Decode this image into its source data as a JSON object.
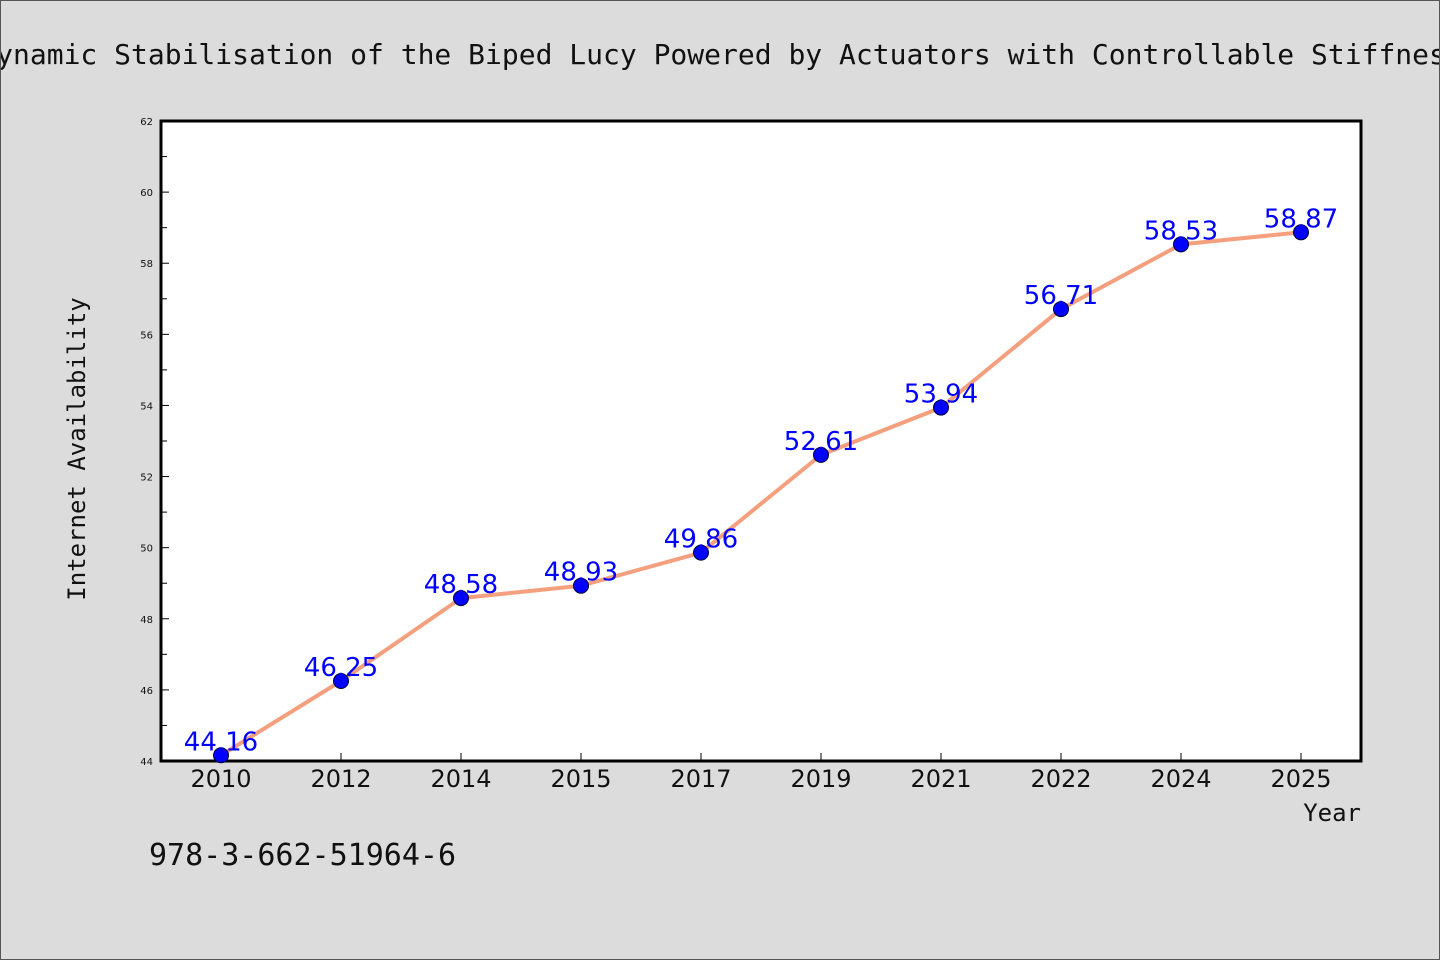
{
  "chart_data": {
    "type": "line",
    "title": "Dynamic Stabilisation of the Biped Lucy Powered by Actuators with Controllable Stiffness",
    "xlabel": "Year",
    "ylabel": "Internet Availability",
    "categories": [
      "2010",
      "2012",
      "2014",
      "2015",
      "2017",
      "2019",
      "2021",
      "2022",
      "2024",
      "2025"
    ],
    "series": [
      {
        "values": [
          44.16,
          46.25,
          48.58,
          48.93,
          49.86,
          52.61,
          53.94,
          56.71,
          58.53,
          58.87
        ],
        "data_labels": [
          "44.16",
          "46.25",
          "48.58",
          "48.93",
          "49.86",
          "52.61",
          "53.94",
          "56.71",
          "58.53",
          "58.87"
        ],
        "line_color": "#f4a07f",
        "marker_color": "#0000ff"
      }
    ],
    "ylim": [
      44,
      62
    ],
    "yticks": [
      44,
      46,
      48,
      50,
      52,
      54,
      56,
      58,
      60,
      62
    ],
    "grid": false,
    "plot_background": "#ffffff",
    "page_background": "#dcdcdc"
  },
  "footer": {
    "isbn": "978-3-662-51964-6"
  }
}
